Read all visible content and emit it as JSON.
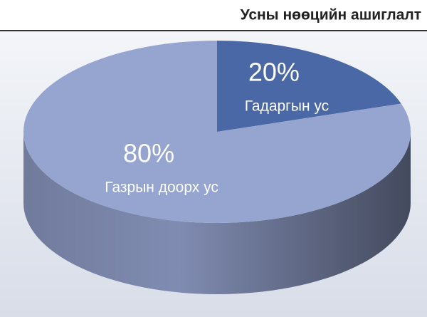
{
  "chart_data": {
    "type": "pie",
    "title": "Усны нөөцийн ашиглалт",
    "categories": [
      "Гадаргын ус",
      "Газрын доорх ус"
    ],
    "values": [
      20,
      80
    ],
    "value_labels": [
      "20%",
      "80%"
    ],
    "colors": [
      "#4a68a6",
      "#96a4d0"
    ]
  }
}
